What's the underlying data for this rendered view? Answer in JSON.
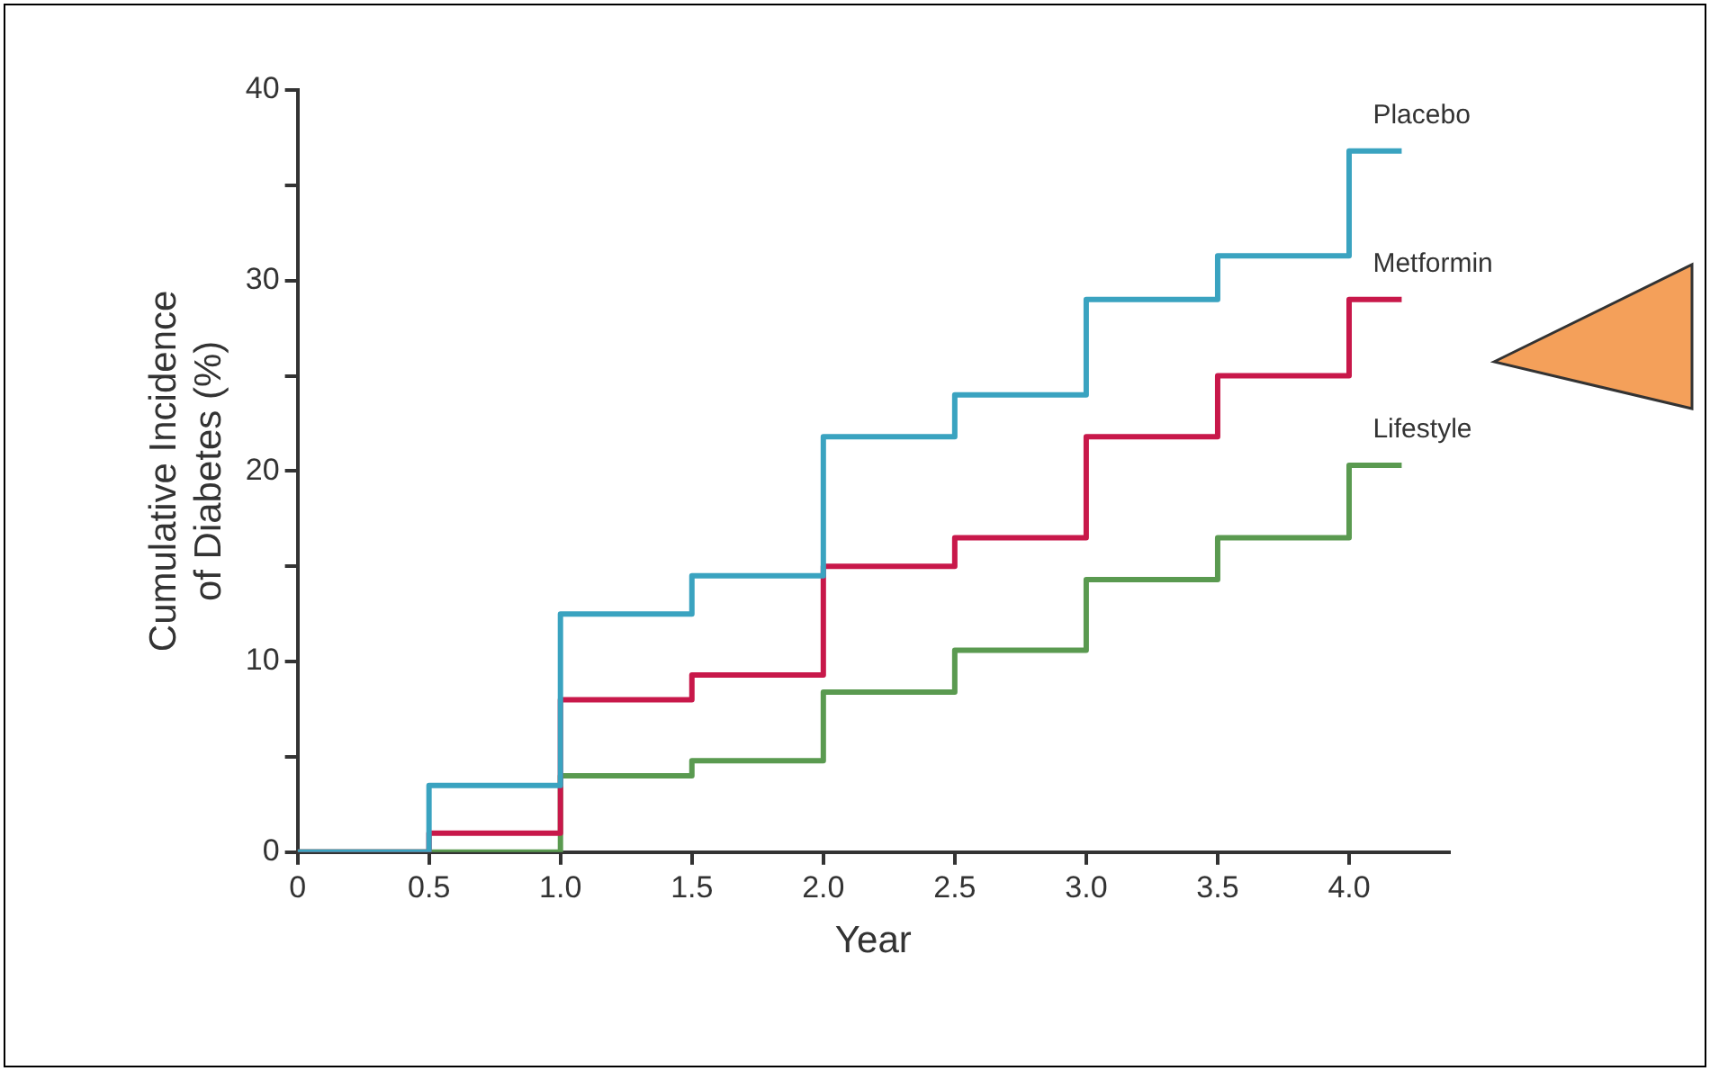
{
  "chart_data": {
    "type": "step",
    "xlabel": "Year",
    "ylabel": "Cumulative Incidence\nof Diabetes (%)",
    "xlim": [
      0,
      4.38
    ],
    "xticks": [
      0,
      0.5,
      {
        "value": 1,
        "label": "1.0"
      },
      1.5,
      {
        "value": 2,
        "label": "2.0"
      },
      2.5,
      {
        "value": 3,
        "label": "3.0"
      },
      3.5,
      {
        "value": 4,
        "label": "4.0"
      }
    ],
    "ylim": [
      0,
      40
    ],
    "yticks": [
      0,
      {
        "value": 5,
        "label": null
      },
      10,
      {
        "value": 15,
        "label": null
      },
      20,
      {
        "value": 25,
        "label": null
      },
      30,
      {
        "value": 35,
        "label": null
      },
      40
    ],
    "grid": false,
    "legend": false,
    "marker": "none",
    "line_style": "solid",
    "series": [
      {
        "name": "Placebo",
        "color": "#3aa3c0",
        "x": [
          0,
          0.5,
          1,
          1.5,
          2,
          2.5,
          3,
          3.5,
          4,
          4.2
        ],
        "values": [
          0,
          3.5,
          12.5,
          14.5,
          21.8,
          24,
          29,
          31.3,
          36.8,
          36.8
        ]
      },
      {
        "name": "Metformin",
        "color": "#c8184a",
        "x": [
          0,
          0.5,
          1,
          1.5,
          2,
          2.5,
          3,
          3.5,
          4,
          4.2
        ],
        "values": [
          0,
          1,
          8,
          9.3,
          15,
          16.5,
          21.8,
          25,
          29,
          29
        ]
      },
      {
        "name": "Lifestyle",
        "color": "#5a9a50",
        "x": [
          0,
          1,
          1.5,
          2,
          2.5,
          3,
          3.5,
          4,
          4.2
        ],
        "values": [
          0,
          4,
          4.8,
          8.4,
          10.6,
          14.3,
          16.5,
          20.3,
          20.3
        ]
      }
    ]
  }
}
